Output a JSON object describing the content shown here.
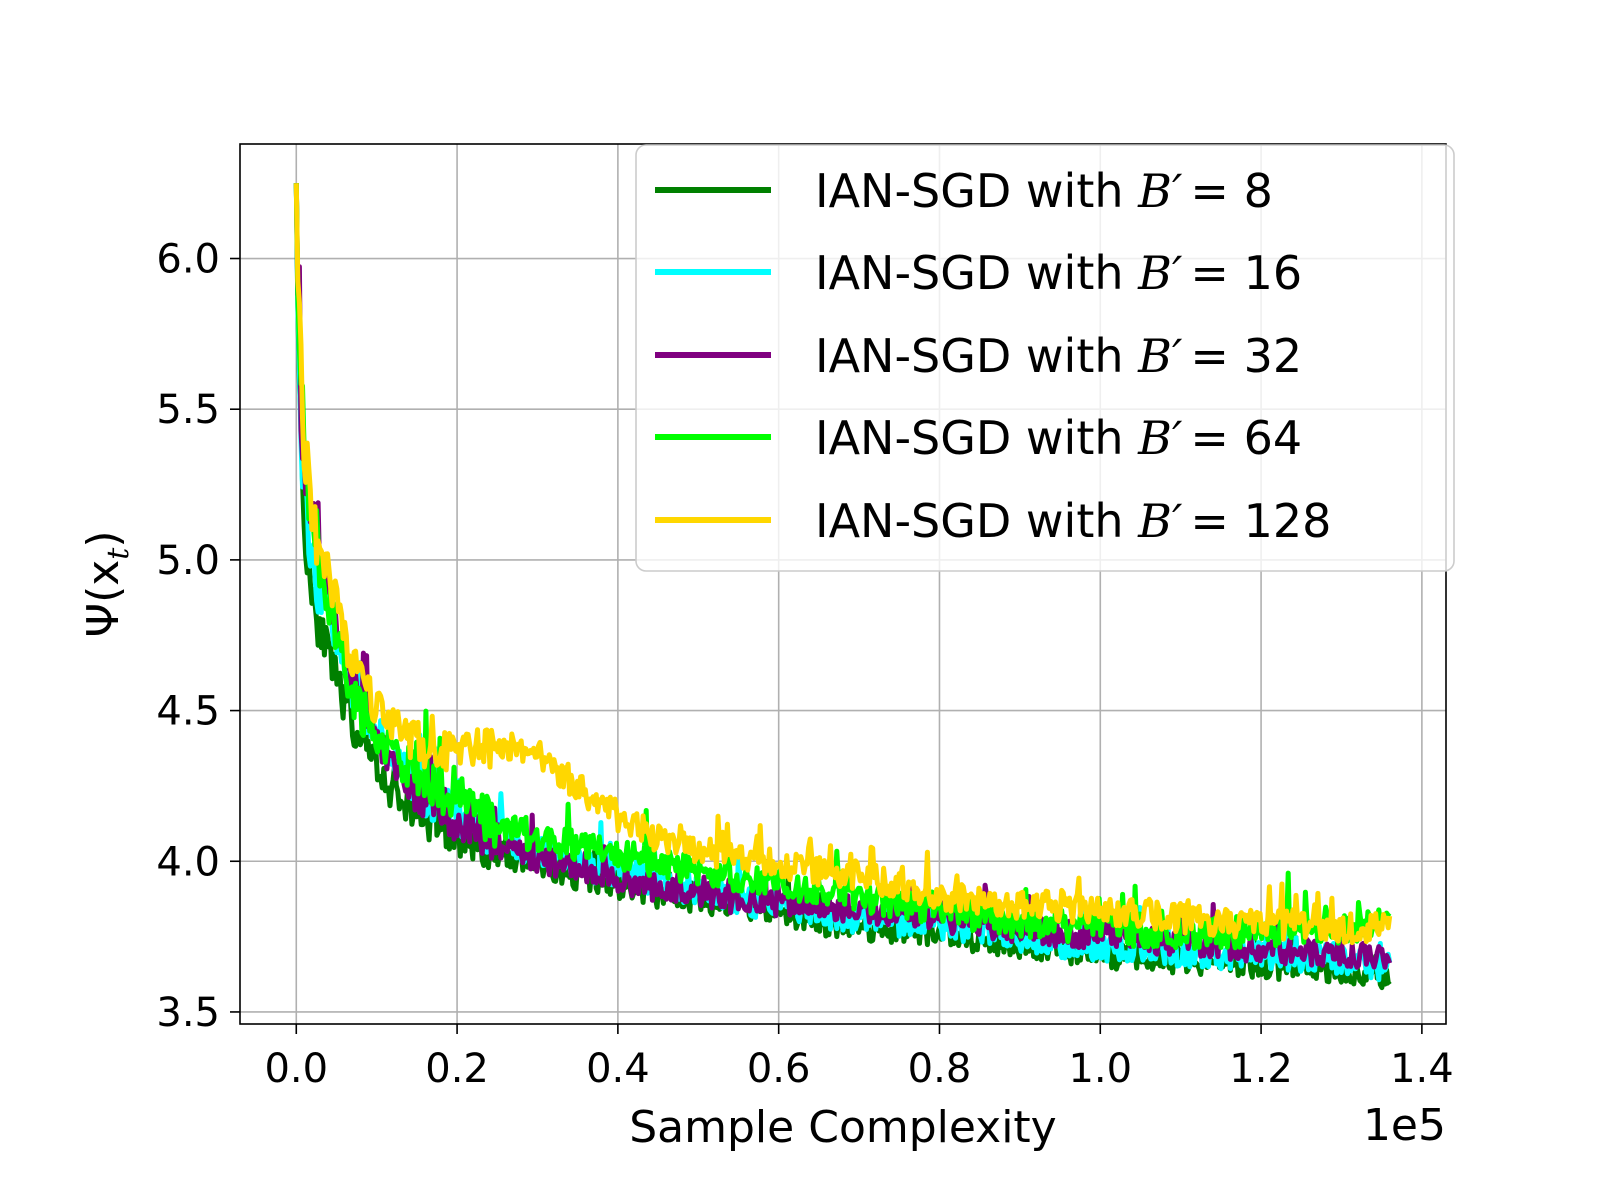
{
  "chart_data": {
    "type": "line",
    "title": "",
    "xlabel": "Sample Complexity",
    "ylabel_base": "Ψ(x",
    "ylabel_sub": "t",
    "ylabel_close": ")",
    "x_offset_text": "1e5",
    "xlim": [
      -0.07,
      1.43
    ],
    "ylim": [
      3.46,
      6.38
    ],
    "xticks": [
      0.0,
      0.2,
      0.4,
      0.6,
      0.8,
      1.0,
      1.2,
      1.4
    ],
    "xtick_labels": [
      "0.0",
      "0.2",
      "0.4",
      "0.6",
      "0.8",
      "1.0",
      "1.2",
      "1.4"
    ],
    "yticks": [
      3.5,
      4.0,
      4.5,
      5.0,
      5.5,
      6.0
    ],
    "ytick_labels": [
      "3.5",
      "4.0",
      "4.5",
      "5.0",
      "5.5",
      "6.0"
    ],
    "grid": true,
    "legend_position": "top-right",
    "series": [
      {
        "name": "IAN-SGD with B' = 8",
        "legend_prefix": "IAN-SGD with ",
        "legend_var": "B′",
        "legend_value": "= 8",
        "color": "#008000",
        "x": [
          0.0,
          0.005,
          0.01,
          0.02,
          0.03,
          0.05,
          0.07,
          0.1,
          0.13,
          0.16,
          0.2,
          0.25,
          0.3,
          0.35,
          0.4,
          0.45,
          0.5,
          0.55,
          0.6,
          0.65,
          0.7,
          0.75,
          0.8,
          0.85,
          0.9,
          0.95,
          1.0,
          1.05,
          1.1,
          1.15,
          1.2,
          1.25,
          1.3,
          1.36
        ],
        "values": [
          6.25,
          5.45,
          5.1,
          4.9,
          4.78,
          4.6,
          4.45,
          4.3,
          4.2,
          4.14,
          4.08,
          4.03,
          3.99,
          3.95,
          3.92,
          3.89,
          3.87,
          3.85,
          3.83,
          3.8,
          3.78,
          3.77,
          3.76,
          3.74,
          3.72,
          3.71,
          3.69,
          3.68,
          3.67,
          3.66,
          3.655,
          3.65,
          3.64,
          3.62
        ]
      },
      {
        "name": "IAN-SGD with B' = 16",
        "legend_prefix": "IAN-SGD with ",
        "legend_var": "B′",
        "legend_value": "= 16",
        "color": "#00ffff",
        "x": [
          0.0,
          0.005,
          0.01,
          0.02,
          0.03,
          0.05,
          0.07,
          0.1,
          0.13,
          0.16,
          0.2,
          0.25,
          0.3,
          0.35,
          0.4,
          0.45,
          0.5,
          0.55,
          0.6,
          0.65,
          0.7,
          0.75,
          0.8,
          0.85,
          0.9,
          0.95,
          1.0,
          1.05,
          1.1,
          1.15,
          1.2,
          1.25,
          1.3,
          1.36
        ],
        "values": [
          6.25,
          5.5,
          5.2,
          5.0,
          4.9,
          4.72,
          4.58,
          4.42,
          4.3,
          4.22,
          4.15,
          4.08,
          4.03,
          3.99,
          3.96,
          3.93,
          3.9,
          3.87,
          3.85,
          3.83,
          3.81,
          3.8,
          3.79,
          3.77,
          3.75,
          3.73,
          3.72,
          3.71,
          3.7,
          3.69,
          3.69,
          3.68,
          3.67,
          3.65
        ]
      },
      {
        "name": "IAN-SGD with B' = 32",
        "legend_prefix": "IAN-SGD with ",
        "legend_var": "B′",
        "legend_value": "= 32",
        "color": "#800080",
        "x": [
          0.0,
          0.005,
          0.01,
          0.02,
          0.03,
          0.05,
          0.07,
          0.1,
          0.13,
          0.16,
          0.2,
          0.25,
          0.3,
          0.35,
          0.4,
          0.45,
          0.5,
          0.55,
          0.6,
          0.65,
          0.7,
          0.75,
          0.8,
          0.85,
          0.9,
          0.95,
          1.0,
          1.05,
          1.1,
          1.15,
          1.2,
          1.25,
          1.3,
          1.36
        ],
        "values": [
          6.25,
          5.55,
          5.3,
          5.15,
          5.0,
          4.8,
          4.6,
          4.4,
          4.28,
          4.2,
          4.13,
          4.06,
          4.01,
          3.97,
          3.94,
          3.91,
          3.89,
          3.87,
          3.86,
          3.85,
          3.84,
          3.83,
          3.81,
          3.79,
          3.77,
          3.76,
          3.75,
          3.74,
          3.73,
          3.72,
          3.71,
          3.7,
          3.69,
          3.68
        ]
      },
      {
        "name": "IAN-SGD with B' = 64",
        "legend_prefix": "IAN-SGD with ",
        "legend_var": "B′",
        "legend_value": "= 64",
        "color": "#00ff00",
        "x": [
          0.0,
          0.005,
          0.01,
          0.02,
          0.03,
          0.05,
          0.07,
          0.1,
          0.13,
          0.16,
          0.2,
          0.25,
          0.3,
          0.35,
          0.4,
          0.45,
          0.5,
          0.55,
          0.6,
          0.65,
          0.7,
          0.75,
          0.8,
          0.85,
          0.9,
          0.95,
          1.0,
          1.05,
          1.1,
          1.15,
          1.2,
          1.25,
          1.3,
          1.36
        ],
        "values": [
          6.25,
          5.6,
          5.35,
          5.15,
          4.98,
          4.75,
          4.55,
          4.42,
          4.33,
          4.26,
          4.2,
          4.12,
          4.08,
          4.05,
          4.02,
          3.99,
          3.97,
          3.95,
          3.93,
          3.91,
          3.88,
          3.86,
          3.84,
          3.82,
          3.8,
          3.79,
          3.78,
          3.77,
          3.76,
          3.76,
          3.77,
          3.78,
          3.78,
          3.79
        ]
      },
      {
        "name": "IAN-SGD with B' = 128",
        "legend_prefix": "IAN-SGD with ",
        "legend_var": "B′",
        "legend_value": "= 128",
        "color": "#ffd700",
        "x": [
          0.0,
          0.005,
          0.01,
          0.02,
          0.03,
          0.05,
          0.07,
          0.1,
          0.13,
          0.16,
          0.2,
          0.25,
          0.3,
          0.35,
          0.4,
          0.45,
          0.5,
          0.55,
          0.6,
          0.65,
          0.7,
          0.75,
          0.8,
          0.85,
          0.9,
          0.95,
          1.0,
          1.05,
          1.1,
          1.15,
          1.2,
          1.25,
          1.3,
          1.36
        ],
        "values": [
          6.25,
          5.7,
          5.35,
          5.15,
          5.02,
          4.85,
          4.65,
          4.5,
          4.42,
          4.38,
          4.36,
          4.38,
          4.36,
          4.25,
          4.15,
          4.08,
          4.03,
          4.01,
          3.99,
          3.97,
          3.95,
          3.92,
          3.89,
          3.87,
          3.86,
          3.85,
          3.84,
          3.83,
          3.81,
          3.8,
          3.79,
          3.79,
          3.78,
          3.78
        ]
      }
    ]
  }
}
